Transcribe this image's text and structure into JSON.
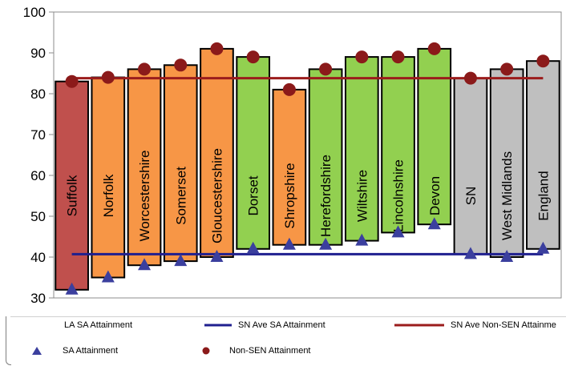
{
  "chart_data": {
    "type": "bar",
    "categories": [
      "Suffolk",
      "Norfolk",
      "Worcestershire",
      "Somerset",
      "Gloucestershire",
      "Dorset",
      "Shropshire",
      "Herefordshire",
      "Wiltshire",
      "Lincolnshire",
      "Devon",
      "SN",
      "West Midlands",
      "England"
    ],
    "bar_range": [
      {
        "low": 32,
        "high": 83
      },
      {
        "low": 35,
        "high": 84
      },
      {
        "low": 38,
        "high": 86
      },
      {
        "low": 39,
        "high": 87
      },
      {
        "low": 40,
        "high": 91
      },
      {
        "low": 42,
        "high": 89
      },
      {
        "low": 43,
        "high": 81
      },
      {
        "low": 43,
        "high": 86
      },
      {
        "low": 44,
        "high": 89
      },
      {
        "low": 46,
        "high": 89
      },
      {
        "low": 48,
        "high": 91
      },
      {
        "low": 40.7,
        "high": 83.8
      },
      {
        "low": 40,
        "high": 86
      },
      {
        "low": 42,
        "high": 88
      }
    ],
    "bar_groups": [
      "red",
      "orange",
      "orange",
      "orange",
      "orange",
      "green",
      "orange",
      "green",
      "green",
      "green",
      "green",
      "grey",
      "grey",
      "grey"
    ],
    "sa_attainment": [
      32,
      35,
      38,
      39,
      40,
      42,
      43,
      43,
      44,
      46,
      48,
      40.7,
      40,
      42
    ],
    "non_sen_attainment": [
      83,
      84,
      86,
      87,
      91,
      89,
      81,
      86,
      89,
      89,
      91,
      83.8,
      86,
      88
    ],
    "sn_ave_sa_attainment": 40.7,
    "sn_ave_non_sen_attainment": 83.8,
    "ylim": [
      30,
      100
    ],
    "yticks": [
      30,
      40,
      50,
      60,
      70,
      80,
      90,
      100
    ],
    "grid": false,
    "legend": {
      "position": "bottom",
      "items": [
        {
          "label": "LA SA Attainment",
          "kind": "bar"
        },
        {
          "label": "SN Ave SA Attainment",
          "kind": "line",
          "color": "#1f1f8f"
        },
        {
          "label": "SN Ave Non-SEN Attainme",
          "kind": "line",
          "color": "#9b1c1c"
        },
        {
          "label": "SA Attainment",
          "kind": "triangle",
          "color": "#3b3f9e"
        },
        {
          "label": "Non-SEN Attainment",
          "kind": "circle",
          "color": "#8b1a1a"
        }
      ]
    },
    "colors": {
      "red": "#c0504d",
      "orange": "#f79646",
      "green": "#92d050",
      "grey": "#bfbfbf",
      "sa_line": "#1f1f8f",
      "non_sen_line": "#9b1c1c",
      "triangle": "#3b3f9e",
      "circle": "#8b1a1a"
    }
  }
}
